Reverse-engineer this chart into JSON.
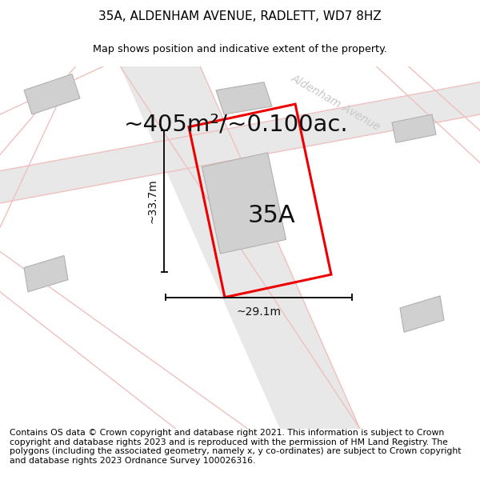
{
  "title_line1": "35A, ALDENHAM AVENUE, RADLETT, WD7 8HZ",
  "title_line2": "Map shows position and indicative extent of the property.",
  "area_text": "~405m²/~0.100ac.",
  "label_35A": "35A",
  "dim_vertical": "~33.7m",
  "dim_horizontal": "~29.1m",
  "road_label": "Aldenham Avenue",
  "footer": "Contains OS data © Crown copyright and database right 2021. This information is subject to Crown copyright and database rights 2023 and is reproduced with the permission of HM Land Registry. The polygons (including the associated geometry, namely x, y co-ordinates) are subject to Crown copyright and database rights 2023 Ordnance Survey 100026316.",
  "bg_color": "#ffffff",
  "road_fill_color": "#e8e8e8",
  "road_edge_color": "#f0c0c0",
  "building_color": "#d0d0d0",
  "building_edge": "#b0b0b0",
  "plot_color": "#ee0000",
  "dim_color": "#111111",
  "title_fontsize": 11,
  "area_fontsize": 21,
  "label_fontsize": 22,
  "footer_fontsize": 7.8,
  "road_label_fontsize": 10,
  "road_label_color": "#c8c8c8",
  "road_label_rotation": -30
}
